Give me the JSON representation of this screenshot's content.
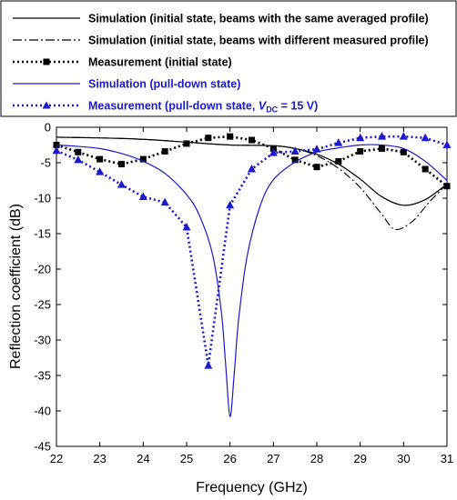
{
  "chart_data": {
    "type": "line",
    "xlabel": "Frequency (GHz)",
    "ylabel": "Reflection coefficient (dB)",
    "xlim": [
      22,
      31
    ],
    "ylim": [
      -45,
      0
    ],
    "x_ticks": [
      22,
      23,
      24,
      25,
      26,
      27,
      28,
      29,
      30,
      31
    ],
    "y_ticks": [
      -45,
      -40,
      -35,
      -30,
      -25,
      -20,
      -15,
      -10,
      -5,
      0
    ],
    "legend_placement": "top",
    "series": [
      {
        "name": "Simulation (initial state, beams with the same averaged profile)",
        "color": "#000000",
        "style": "solid",
        "x": [
          22,
          23,
          24,
          25,
          26,
          27,
          27.5,
          28,
          28.5,
          29,
          29.5,
          30,
          30.5,
          31
        ],
        "y": [
          -1.4,
          -1.5,
          -1.7,
          -2.1,
          -2.5,
          -2.6,
          -3.0,
          -3.8,
          -5.2,
          -7.3,
          -9.8,
          -11.0,
          -10.2,
          -8.0
        ]
      },
      {
        "name": "Simulation (initial state, beams with different measured profile)",
        "color": "#000000",
        "style": "dashdot",
        "x": [
          22,
          23,
          24,
          25,
          26,
          27,
          27.5,
          28,
          28.5,
          29,
          29.5,
          29.8,
          30.2,
          30.6,
          31
        ],
        "y": [
          -1.4,
          -1.5,
          -1.7,
          -2.1,
          -2.5,
          -2.6,
          -3.0,
          -4.0,
          -5.8,
          -8.5,
          -12.3,
          -14.4,
          -13.3,
          -10.5,
          -8.0
        ]
      },
      {
        "name": "Measurement (initial state)",
        "color": "#000000",
        "style": "dot-square",
        "x": [
          22,
          22.5,
          23,
          23.5,
          24,
          24.5,
          25,
          25.5,
          26,
          26.5,
          27,
          27.5,
          28,
          28.5,
          29,
          29.5,
          30,
          30.5,
          31
        ],
        "y": [
          -2.5,
          -3.5,
          -4.5,
          -5.2,
          -4.5,
          -3.4,
          -2.3,
          -1.5,
          -1.3,
          -1.8,
          -3.0,
          -4.6,
          -5.6,
          -4.8,
          -3.4,
          -3.0,
          -3.5,
          -5.9,
          -8.3
        ]
      },
      {
        "name": "Simulation (pull-down state)",
        "color": "#1a1acc",
        "style": "solid",
        "x": [
          22,
          22.5,
          23,
          23.5,
          24,
          24.5,
          25,
          25.3,
          25.6,
          25.8,
          25.9,
          26,
          26.1,
          26.2,
          26.4,
          26.7,
          27,
          27.5,
          28,
          28.5,
          29,
          29.5,
          30,
          30.5,
          31
        ],
        "y": [
          -2.5,
          -2.7,
          -3.0,
          -3.7,
          -4.8,
          -6.5,
          -9.5,
          -12.5,
          -18.0,
          -26.0,
          -33.5,
          -40.8,
          -34.5,
          -27.0,
          -18.0,
          -11.0,
          -7.4,
          -4.9,
          -3.5,
          -2.9,
          -2.5,
          -2.5,
          -3.0,
          -4.8,
          -7.5
        ]
      },
      {
        "name": "Measurement (pull-down state, V_DC = 15 V)",
        "color": "#1a1acc",
        "style": "dot-triangle",
        "x": [
          22,
          22.5,
          23,
          23.5,
          24,
          24.5,
          25,
          25.5,
          26,
          26.5,
          27,
          27.5,
          28,
          28.5,
          29,
          29.5,
          30,
          30.5,
          31
        ],
        "y": [
          -3.3,
          -4.6,
          -6.3,
          -8.1,
          -9.8,
          -10.6,
          -14.1,
          -33.6,
          -11.0,
          -5.9,
          -3.6,
          -3.4,
          -3.1,
          -2.2,
          -1.5,
          -1.3,
          -1.3,
          -1.5,
          -2.5
        ]
      }
    ],
    "legend": [
      {
        "text": "Simulation (initial state, beams with the same averaged profile)",
        "color": "#000000"
      },
      {
        "text": "Simulation (initial state, beams with different measured profile)",
        "color": "#000000"
      },
      {
        "text": "Measurement (initial state)",
        "color": "#000000"
      },
      {
        "text": "Simulation (pull-down state)",
        "color": "#1a1acc"
      },
      {
        "text_main": "Measurement (pull-down state, ",
        "text_var": "V",
        "text_sub": "DC",
        "text_end": " = 15 V)",
        "color": "#1a1acc"
      }
    ]
  }
}
